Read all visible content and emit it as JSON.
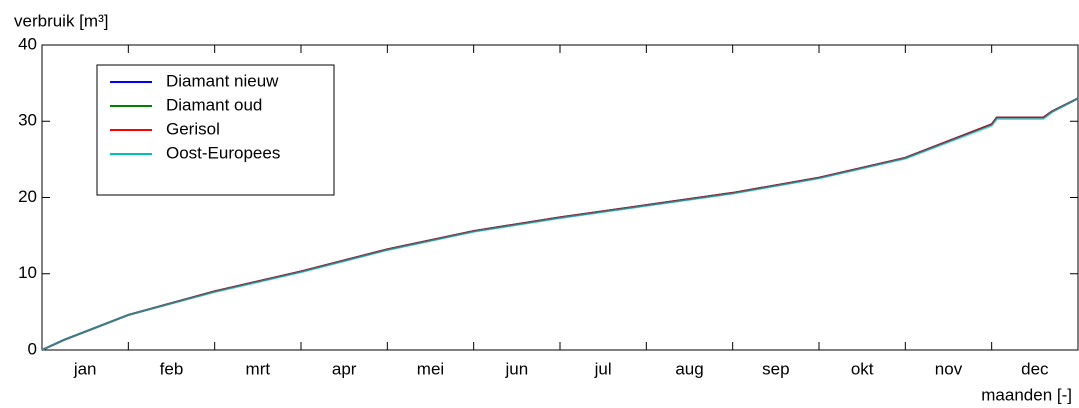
{
  "chart_data": {
    "type": "line",
    "y_label": "verbruik [m³]",
    "x_label": "maanden [-]",
    "categories": [
      "jan",
      "feb",
      "mrt",
      "apr",
      "mei",
      "jun",
      "jul",
      "aug",
      "sep",
      "okt",
      "nov",
      "dec"
    ],
    "x": [
      0,
      0.25,
      0.5,
      1,
      2,
      3,
      4,
      5,
      6,
      7,
      8,
      9,
      10,
      11,
      11.06,
      11.6,
      11.7,
      12
    ],
    "series": [
      {
        "name": "Diamant nieuw",
        "color": "#0000ff",
        "values": [
          0,
          1.3,
          2.4,
          4.6,
          7.7,
          10.3,
          13.2,
          15.6,
          17.4,
          19.0,
          20.6,
          22.6,
          25.2,
          29.6,
          30.5,
          30.5,
          31.3,
          33
        ]
      },
      {
        "name": "Diamant oud",
        "color": "#008000",
        "values": [
          0,
          1.3,
          2.4,
          4.6,
          7.7,
          10.3,
          13.2,
          15.6,
          17.4,
          19.0,
          20.6,
          22.6,
          25.2,
          29.6,
          30.5,
          30.5,
          31.3,
          33
        ]
      },
      {
        "name": "Gerisol",
        "color": "#ff0000",
        "values": [
          0,
          1.3,
          2.4,
          4.6,
          7.7,
          10.3,
          13.2,
          15.6,
          17.4,
          19.0,
          20.6,
          22.6,
          25.2,
          29.6,
          30.5,
          30.5,
          31.3,
          33
        ]
      },
      {
        "name": "Oost-Europees",
        "color": "#00bfbf",
        "values": [
          0,
          1.3,
          2.4,
          4.6,
          7.6,
          10.2,
          13.1,
          15.5,
          17.3,
          18.9,
          20.5,
          22.5,
          25.1,
          29.4,
          30.3,
          30.3,
          31.2,
          33
        ]
      }
    ],
    "xlim": [
      0,
      12
    ],
    "xticks": [
      1,
      2,
      3,
      4,
      5,
      6,
      7,
      8,
      9,
      10,
      11
    ],
    "ylim": [
      0,
      40
    ],
    "yticks": [
      0,
      10,
      20,
      30,
      40
    ],
    "legend": "upper left"
  }
}
